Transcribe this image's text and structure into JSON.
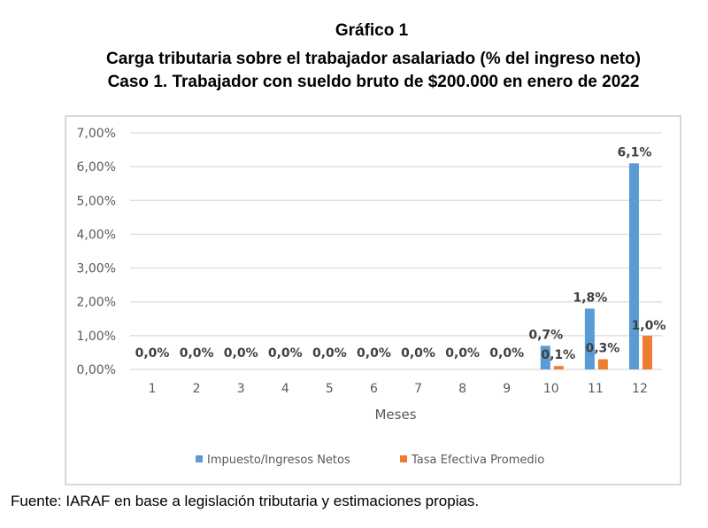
{
  "header": {
    "title": "Gráfico 1",
    "subtitle": "Carga tributaria sobre el trabajador asalariado (% del ingreso neto)",
    "case": "Caso 1. Trabajador con sueldo bruto de $200.000 en enero de 2022"
  },
  "chart_data": {
    "type": "bar",
    "title": "Gráfico 1",
    "xlabel": "Meses",
    "ylabel": "",
    "ylim": [
      0,
      7
    ],
    "yticks": [
      "0,00%",
      "1,00%",
      "2,00%",
      "3,00%",
      "4,00%",
      "5,00%",
      "6,00%",
      "7,00%"
    ],
    "grid": true,
    "legend": "bottom",
    "categories": [
      "1",
      "2",
      "3",
      "4",
      "5",
      "6",
      "7",
      "8",
      "9",
      "10",
      "11",
      "12"
    ],
    "series": [
      {
        "name": "Impuesto/Ingresos Netos",
        "color": "#5b9bd5",
        "values": [
          0,
          0,
          0,
          0,
          0,
          0,
          0,
          0,
          0,
          0.7,
          1.8,
          6.1
        ],
        "labels": [
          "0,0%",
          "0,0%",
          "0,0%",
          "0,0%",
          "0,0%",
          "0,0%",
          "0,0%",
          "0,0%",
          "0,0%",
          "0,7%",
          "1,8%",
          "6,1%"
        ]
      },
      {
        "name": "Tasa Efectiva Promedio",
        "color": "#ed7d31",
        "values": [
          0,
          0,
          0,
          0,
          0,
          0,
          0,
          0,
          0,
          0.1,
          0.3,
          1.0
        ],
        "labels": [
          "",
          "",
          "",
          "",
          "",
          "",
          "",
          "",
          "",
          "0,1%",
          "0,3%",
          "1,0%"
        ]
      }
    ]
  },
  "footer": {
    "source": "Fuente: IARAF en base a legislación tributaria y estimaciones propias."
  }
}
